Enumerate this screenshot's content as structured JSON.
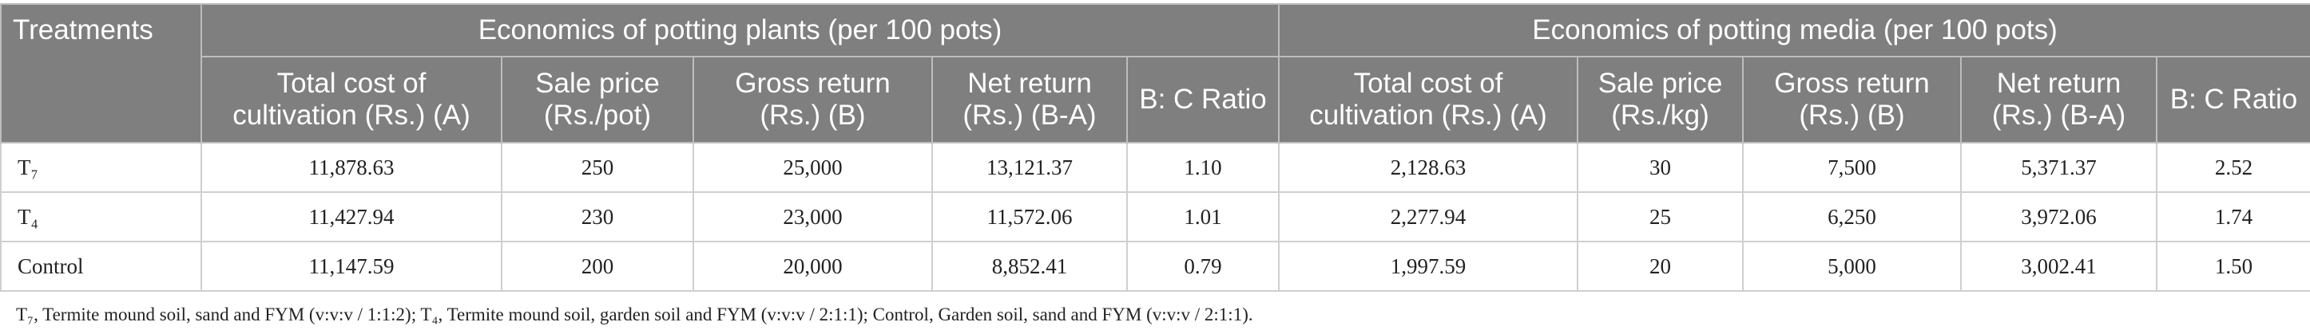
{
  "table": {
    "treatments_header": "Treatments",
    "groups": [
      "Economics of potting plants (per 100 pots)",
      "Economics of potting media (per 100 pots)"
    ],
    "columns": [
      "Total cost of cultivation (Rs.) (A)",
      "Sale price (Rs./pot)",
      "Gross return (Rs.) (B)",
      "Net return (Rs.) (B-A)",
      "B: C Ratio",
      "Total cost of cultivation (Rs.) (A)",
      "Sale price (Rs./kg)",
      "Gross return (Rs.) (B)",
      "Net return (Rs.) (B-A)",
      "B: C Ratio"
    ],
    "rows": [
      [
        "T₇",
        "11,878.63",
        "250",
        "25,000",
        "13,121.37",
        "1.10",
        "2,128.63",
        "30",
        "7,500",
        "5,371.37",
        "2.52"
      ],
      [
        "T₄",
        "11,427.94",
        "230",
        "23,000",
        "11,572.06",
        "1.01",
        "2,277.94",
        "25",
        "6,250",
        "3,972.06",
        "1.74"
      ],
      [
        "Control",
        "11,147.59",
        "200",
        "20,000",
        "8,852.41",
        "0.79",
        "1,997.59",
        "20",
        "5,000",
        "3,002.41",
        "1.50"
      ]
    ],
    "footnote": "T₇, Termite mound soil, sand and FYM (v:v:v / 1:1:2); T₄, Termite mound soil, garden soil and FYM (v:v:v / 2:1:1); Control, Garden soil, sand and FYM (v:v:v / 2:1:1)."
  }
}
